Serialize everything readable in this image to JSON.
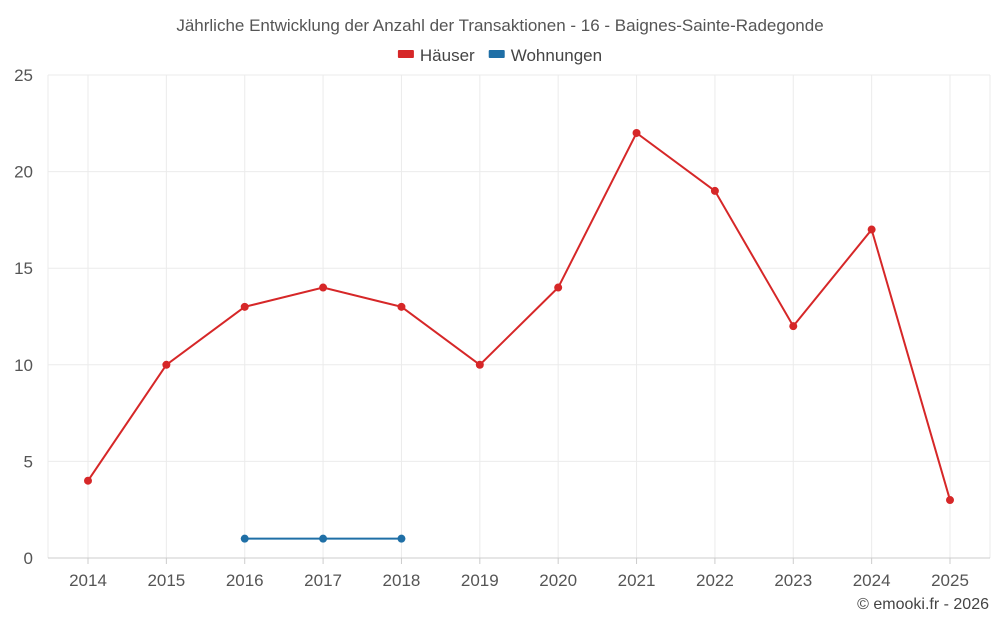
{
  "chart_data": {
    "type": "line",
    "title": "Jährliche Entwicklung der Anzahl der Transaktionen - 16 - Baignes-Sainte-Radegonde",
    "categories": [
      "2014",
      "2015",
      "2016",
      "2017",
      "2018",
      "2019",
      "2020",
      "2021",
      "2022",
      "2023",
      "2024",
      "2025"
    ],
    "ylim": [
      0,
      25
    ],
    "yticks": [
      0,
      5,
      10,
      15,
      20,
      25
    ],
    "grid": true,
    "legend_position": "top-center",
    "series": [
      {
        "name": "Häuser",
        "color": "#d62728",
        "values": [
          4,
          10,
          13,
          14,
          13,
          10,
          14,
          22,
          19,
          12,
          17,
          3
        ]
      },
      {
        "name": "Wohnungen",
        "color": "#1f6fa6",
        "values": [
          null,
          null,
          1,
          1,
          1,
          null,
          null,
          null,
          null,
          null,
          null,
          null
        ]
      }
    ]
  },
  "credit": "© emooki.fr - 2026"
}
